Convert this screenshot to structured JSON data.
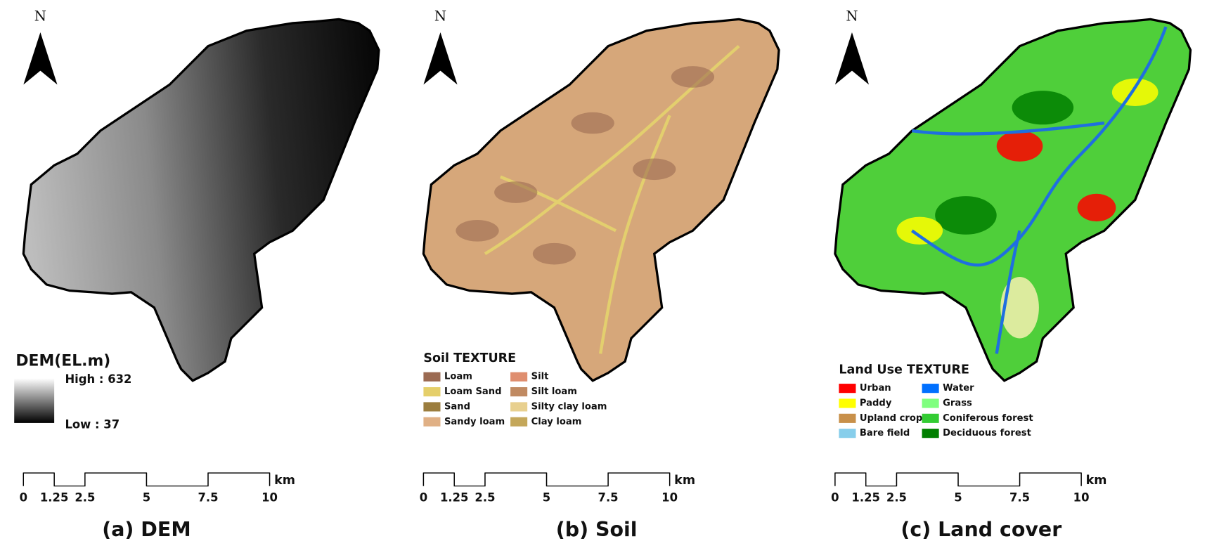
{
  "panels": [
    {
      "north": "N",
      "legend": {
        "kind": "gradient",
        "title": "DEM(EL.m)",
        "high": "High : 632",
        "low": "Low   : 37"
      },
      "fill": "dem",
      "scale": {
        "ticks": [
          0,
          1.25,
          2.5,
          5,
          7.5,
          10
        ],
        "unit": "km"
      },
      "caption": "(a) DEM"
    },
    {
      "north": "N",
      "legend": {
        "kind": "classes",
        "title": "Soil TEXTURE",
        "items": [
          {
            "name": "Loam",
            "color": "#9b6a52"
          },
          {
            "name": "Loam Sand",
            "color": "#e5cf6a"
          },
          {
            "name": "Sand",
            "color": "#9b7d3e"
          },
          {
            "name": "Sandy loam",
            "color": "#e0b085"
          },
          {
            "name": "Silt",
            "color": "#df8e6f"
          },
          {
            "name": "Silt loam",
            "color": "#c08a62"
          },
          {
            "name": "Silty clay loam",
            "color": "#e8d08f"
          },
          {
            "name": "Clay loam",
            "color": "#c4a75a"
          }
        ]
      },
      "fill": "soil",
      "scale": {
        "ticks": [
          0,
          1.25,
          2.5,
          5,
          7.5,
          10
        ],
        "unit": "km"
      },
      "caption": "(b) Soil"
    },
    {
      "north": "N",
      "legend": {
        "kind": "classes",
        "title": "Land Use TEXTURE",
        "items": [
          {
            "name": "Urban",
            "color": "#ff0000"
          },
          {
            "name": "Paddy",
            "color": "#ffff00"
          },
          {
            "name": "Upland crop",
            "color": "#c8904a"
          },
          {
            "name": "Bare field",
            "color": "#87ceeb"
          },
          {
            "name": "Water",
            "color": "#0070ff"
          },
          {
            "name": "Grass",
            "color": "#7fff7f"
          },
          {
            "name": "Coniferous forest",
            "color": "#33cc33"
          },
          {
            "name": "Deciduous forest",
            "color": "#007f00"
          }
        ]
      },
      "fill": "land",
      "scale": {
        "ticks": [
          0,
          1.25,
          2.5,
          5,
          7.5,
          10
        ],
        "unit": "km"
      },
      "caption": "(c) Land cover"
    }
  ]
}
